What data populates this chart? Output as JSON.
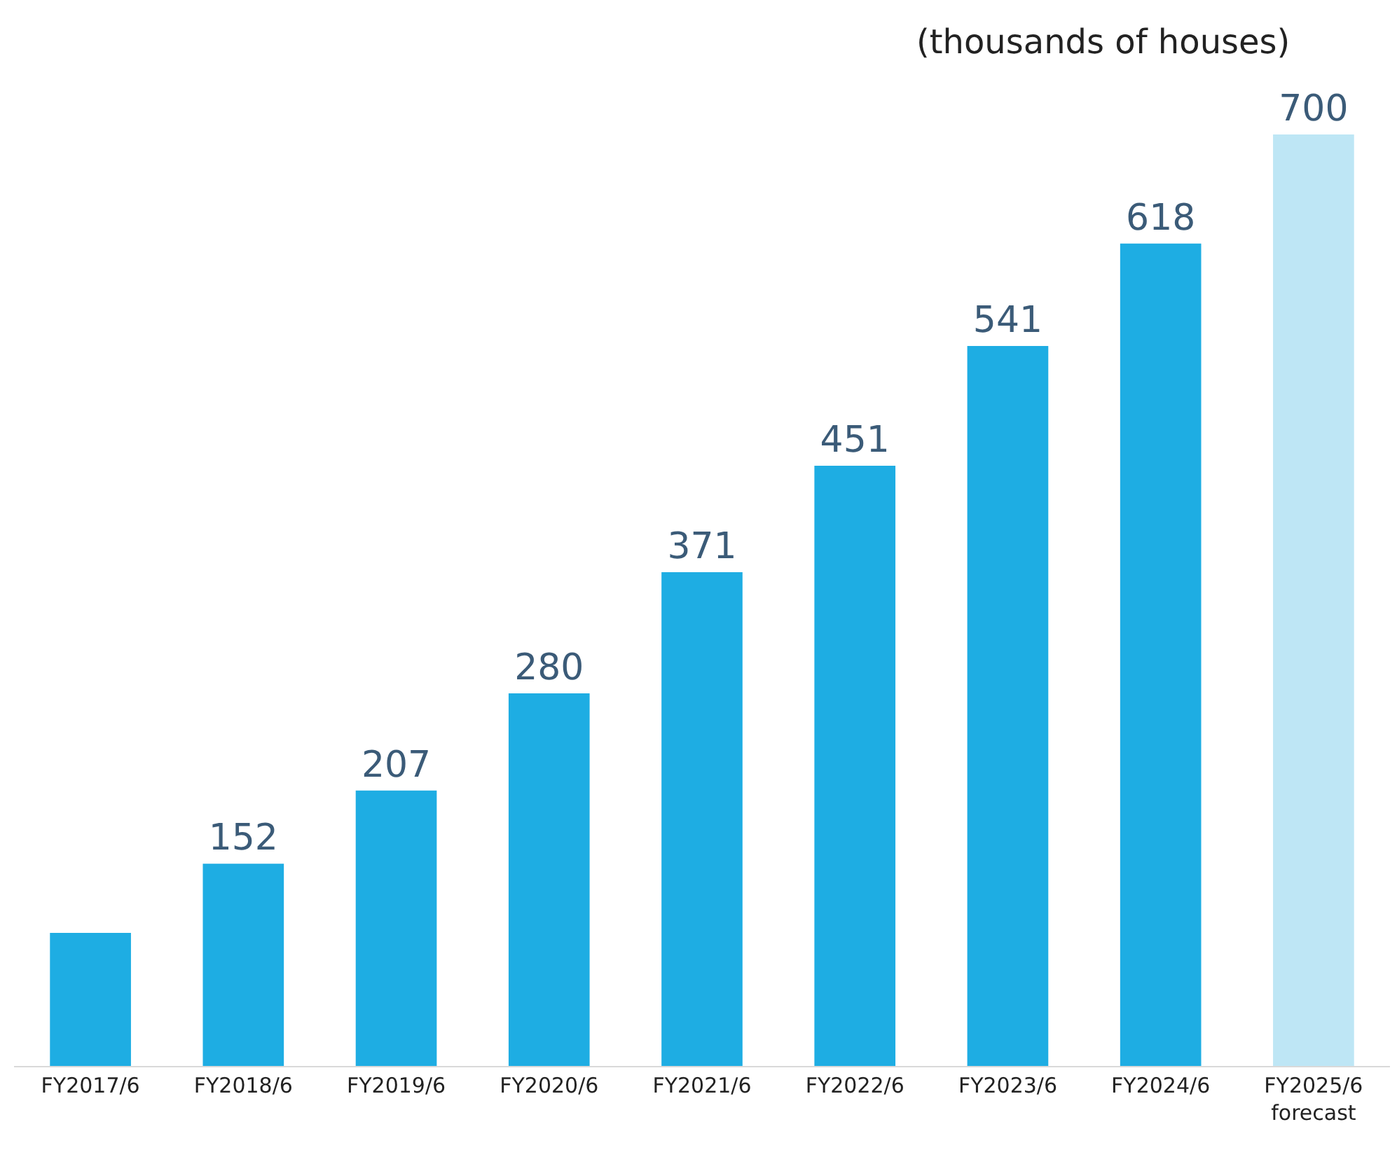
{
  "chart_data": {
    "type": "bar",
    "ylabel": "(thousands of houses)",
    "categories": [
      "FY2017/6",
      "FY2018/6",
      "FY2019/6",
      "FY2020/6",
      "FY2021/6",
      "FY2022/6",
      "FY2023/6",
      "FY2024/6",
      "FY2025/6\nforecast"
    ],
    "values": [
      100,
      152,
      207,
      280,
      371,
      451,
      541,
      618,
      700
    ],
    "value_labels": [
      null,
      "152",
      "207",
      "280",
      "371",
      "451",
      "541",
      "618",
      "700"
    ],
    "colors": [
      "#1eade3",
      "#1eade3",
      "#1eade3",
      "#1eade3",
      "#1eade3",
      "#1eade3",
      "#1eade3",
      "#1eade3",
      "#bee6f5"
    ],
    "legend": false
  }
}
